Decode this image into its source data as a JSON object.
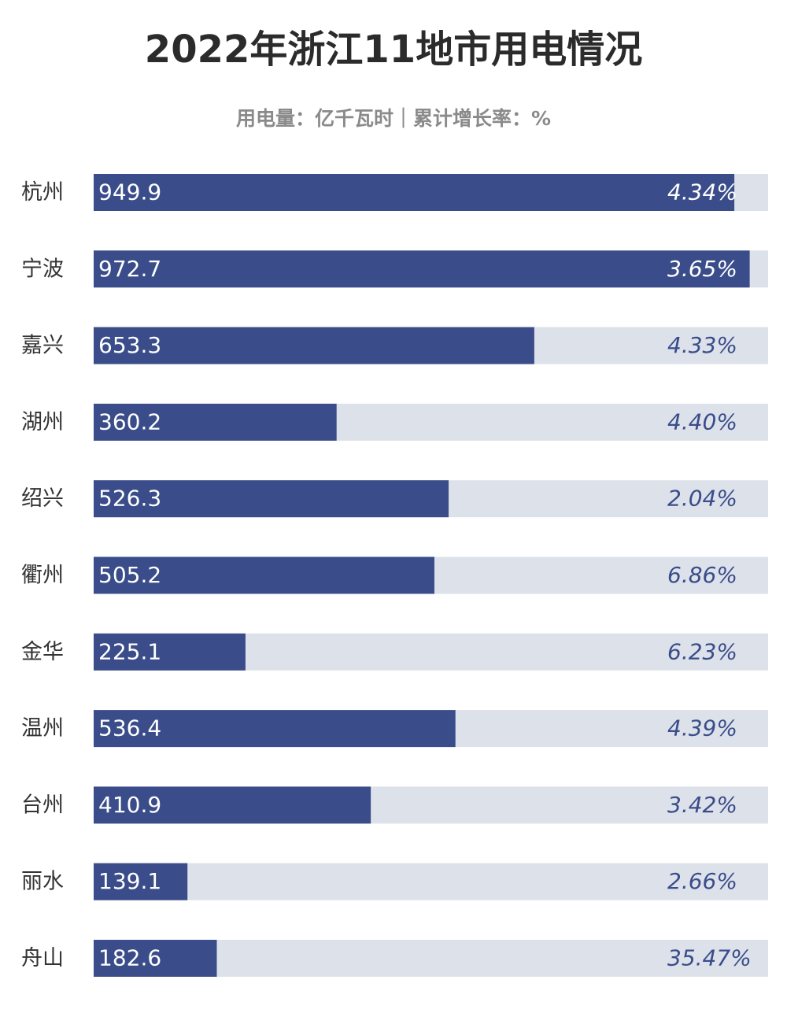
{
  "chart_data": {
    "type": "bar",
    "title": "2022年浙江11地市用电情况",
    "subtitle": "用电量：亿千瓦时｜累计增长率：%",
    "categories": [
      "杭州",
      "宁波",
      "嘉兴",
      "湖州",
      "绍兴",
      "衢州",
      "金华",
      "温州",
      "台州",
      "丽水",
      "舟山"
    ],
    "values": [
      949.9,
      972.7,
      653.3,
      360.2,
      526.3,
      505.2,
      225.1,
      536.4,
      410.9,
      139.1,
      182.6
    ],
    "color": "#3a4d8a",
    "track_color": "#dde1ea",
    "xlim": [
      0,
      1000
    ],
    "growth": {
      "values": [
        4.34,
        3.65,
        4.33,
        4.4,
        2.04,
        6.86,
        6.23,
        4.39,
        3.42,
        2.66,
        35.47
      ],
      "value_labels": [
        "4.34%",
        "3.65%",
        "4.33%",
        "4.40%",
        "2.04%",
        "6.86%",
        "6.23%",
        "4.39%",
        "3.42%",
        "2.66%",
        "35.47%"
      ]
    }
  }
}
